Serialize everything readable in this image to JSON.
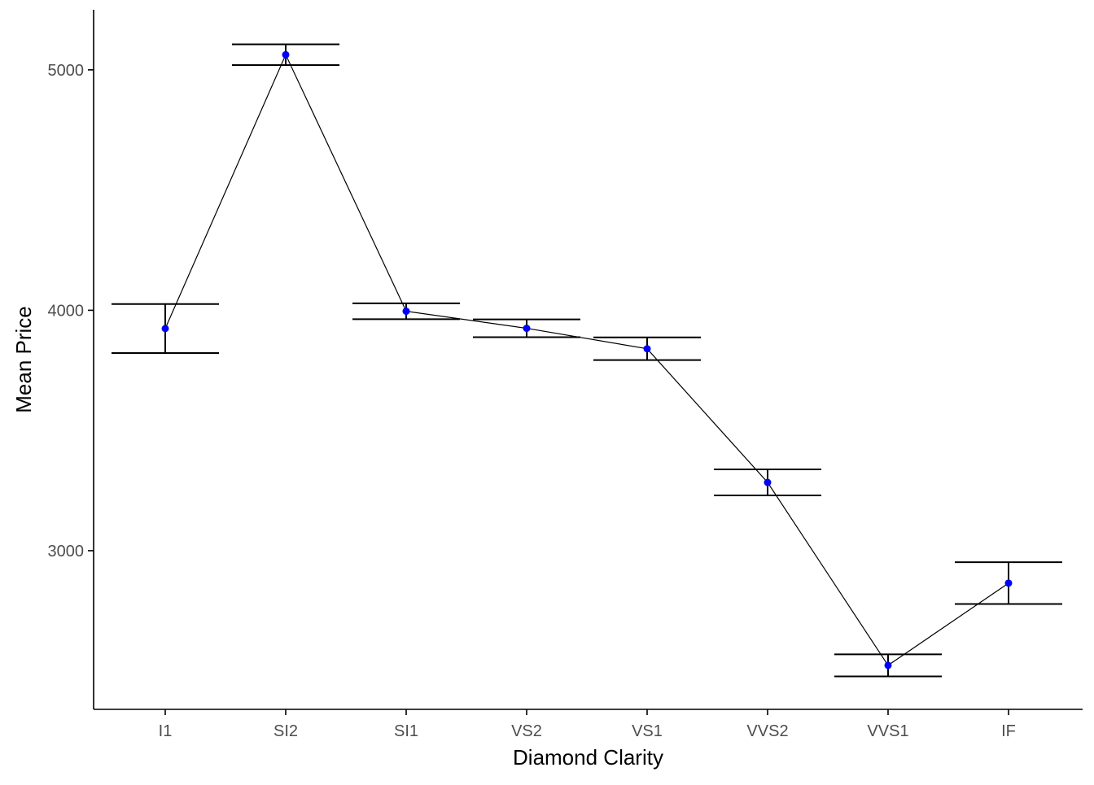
{
  "chart_data": {
    "type": "line",
    "title": "",
    "xlabel": "Diamond Clarity",
    "ylabel": "Mean Price",
    "categories": [
      "I1",
      "SI2",
      "SI1",
      "VS2",
      "VS1",
      "VVS2",
      "VVS1",
      "IF"
    ],
    "series": [
      {
        "name": "Mean Price",
        "values": [
          3924,
          5063,
          3996,
          3925,
          3840,
          3284,
          2523,
          2865
        ],
        "lower": [
          3822,
          5020,
          3963,
          3888,
          3793,
          3230,
          2477,
          2778
        ],
        "upper": [
          4026,
          5106,
          4029,
          3962,
          3887,
          3338,
          2569,
          2952
        ]
      }
    ],
    "y_ticks": [
      3000,
      4000,
      5000
    ],
    "ylim": [
      2340,
      5250
    ],
    "grid": false,
    "colors": {
      "point": "#0000ff",
      "line": "#000000",
      "errorbar": "#000000",
      "axis": "#000000",
      "tick_label": "#4d4d4d"
    }
  }
}
